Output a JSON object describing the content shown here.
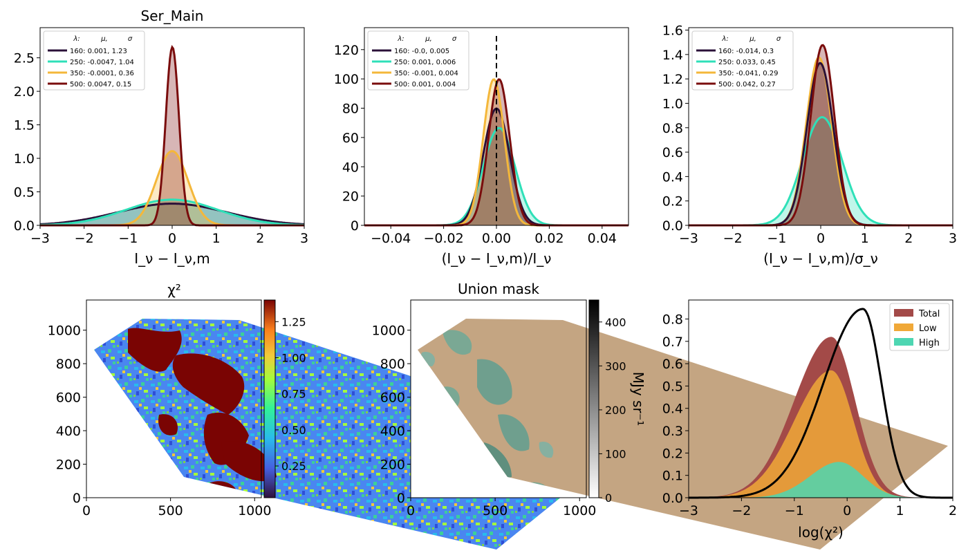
{
  "panels": {
    "p1": {
      "title": "Ser_Main",
      "xlabel": "I_ν − I_ν,m",
      "xticks": [
        "−3",
        "−2",
        "−1",
        "0",
        "1",
        "2",
        "3"
      ],
      "yticks": [
        "0.0",
        "0.5",
        "1.0",
        "1.5",
        "2.0",
        "2.5"
      ],
      "legend": {
        "header": [
          "λ:",
          "μ,",
          "σ"
        ],
        "entries": [
          "160: 0.001,  1.23",
          "250: -0.0047,  1.04",
          "350: -0.0001,  0.36",
          "500: 0.0047,  0.15"
        ]
      }
    },
    "p2": {
      "xlabel": "(I_ν − I_ν,m)/I_ν",
      "xticks": [
        "−0.04",
        "−0.02",
        "0.00",
        "0.02",
        "0.04"
      ],
      "yticks": [
        "0",
        "20",
        "40",
        "60",
        "80",
        "100",
        "120"
      ],
      "legend": {
        "header": [
          "λ:",
          "μ,",
          "σ"
        ],
        "entries": [
          "160: -0.0,  0.005",
          "250: 0.001,  0.006",
          "350: -0.001,  0.004",
          "500: 0.001,  0.004"
        ]
      }
    },
    "p3": {
      "xlabel": "(I_ν − I_ν,m)/σ_ν",
      "xticks": [
        "−3",
        "−2",
        "−1",
        "0",
        "1",
        "2",
        "3"
      ],
      "yticks": [
        "0.0",
        "0.2",
        "0.4",
        "0.6",
        "0.8",
        "1.0",
        "1.2",
        "1.4",
        "1.6"
      ],
      "legend": {
        "header": [
          "λ:",
          "μ,",
          "σ"
        ],
        "entries": [
          "160: -0.014,  0.3",
          "250: 0.033,  0.45",
          "350: -0.041,  0.29",
          "500: 0.042,  0.27"
        ]
      }
    },
    "p4": {
      "title": "χ²",
      "xticks": [
        "0",
        "500",
        "1000"
      ],
      "yticks": [
        "0",
        "200",
        "400",
        "600",
        "800",
        "1000"
      ],
      "cbticks": [
        "0.25",
        "0.50",
        "0.75",
        "1.00",
        "1.25"
      ]
    },
    "p5": {
      "title": "Union mask",
      "xticks": [
        "0",
        "500",
        "1000"
      ],
      "yticks": [
        "0",
        "200",
        "400",
        "600",
        "800",
        "1000"
      ],
      "cbticks": [
        "0",
        "100",
        "200",
        "300",
        "400"
      ],
      "cblabel": "MJy sr⁻¹"
    },
    "p6": {
      "xlabel": "log(χ²)",
      "xticks": [
        "−3",
        "−2",
        "−1",
        "0",
        "1",
        "2"
      ],
      "yticks": [
        "0.0",
        "0.1",
        "0.2",
        "0.3",
        "0.4",
        "0.5",
        "0.6",
        "0.7",
        "0.8"
      ],
      "legend": [
        "Total",
        "Low",
        "High"
      ]
    }
  },
  "colors": {
    "c160": "#2a1038",
    "c250": "#2ee0b8",
    "c350": "#f4b73a",
    "c500": "#7a0c0c",
    "total": "#a34a48",
    "low": "#f0a838",
    "high": "#4ed6b2"
  },
  "chart_data": [
    {
      "type": "line",
      "title": "Ser_Main",
      "xlabel": "I_ν − I_ν,m",
      "xlim": [
        -3,
        3
      ],
      "ylim": [
        0,
        2.95
      ],
      "series": [
        {
          "name": "160",
          "mu": 0.001,
          "sigma": 1.23
        },
        {
          "name": "250",
          "mu": -0.0047,
          "sigma": 1.04
        },
        {
          "name": "350",
          "mu": -0.0001,
          "sigma": 0.36
        },
        {
          "name": "500",
          "mu": 0.0047,
          "sigma": 0.15
        }
      ]
    },
    {
      "type": "line",
      "xlabel": "(I_ν − I_ν,m)/I_ν",
      "xlim": [
        -0.05,
        0.05
      ],
      "ylim": [
        0,
        135
      ],
      "vline": 0,
      "series": [
        {
          "name": "160",
          "mu": 0.0,
          "sigma": 0.005
        },
        {
          "name": "250",
          "mu": 0.001,
          "sigma": 0.006
        },
        {
          "name": "350",
          "mu": -0.001,
          "sigma": 0.004
        },
        {
          "name": "500",
          "mu": 0.001,
          "sigma": 0.004
        }
      ]
    },
    {
      "type": "line",
      "xlabel": "(I_ν − I_ν,m)/σ_ν",
      "xlim": [
        -3,
        3
      ],
      "ylim": [
        0,
        1.62
      ],
      "series": [
        {
          "name": "160",
          "mu": -0.014,
          "sigma": 0.3
        },
        {
          "name": "250",
          "mu": 0.033,
          "sigma": 0.45
        },
        {
          "name": "350",
          "mu": -0.041,
          "sigma": 0.29
        },
        {
          "name": "500",
          "mu": 0.042,
          "sigma": 0.27
        }
      ]
    },
    {
      "type": "heatmap",
      "title": "χ²",
      "xlim": [
        0,
        1040
      ],
      "ylim": [
        0,
        1180
      ],
      "clim": [
        0.03,
        1.4
      ]
    },
    {
      "type": "heatmap",
      "title": "Union mask",
      "xlim": [
        0,
        1040
      ],
      "ylim": [
        0,
        1180
      ],
      "clim": [
        0,
        450
      ],
      "colorbar_label": "MJy sr⁻¹"
    },
    {
      "type": "area",
      "xlabel": "log(χ²)",
      "xlim": [
        -3,
        2
      ],
      "ylim": [
        0,
        0.885
      ],
      "legend_position": "top-right",
      "series": [
        {
          "name": "Total",
          "peak_x": -0.3,
          "peak_y": 0.72
        },
        {
          "name": "Low",
          "peak_x": -0.3,
          "peak_y": 0.57
        },
        {
          "name": "High",
          "peak_x": -0.15,
          "peak_y": 0.16
        }
      ],
      "line": {
        "peak_x": 0.3,
        "peak_y": 0.845
      }
    }
  ]
}
